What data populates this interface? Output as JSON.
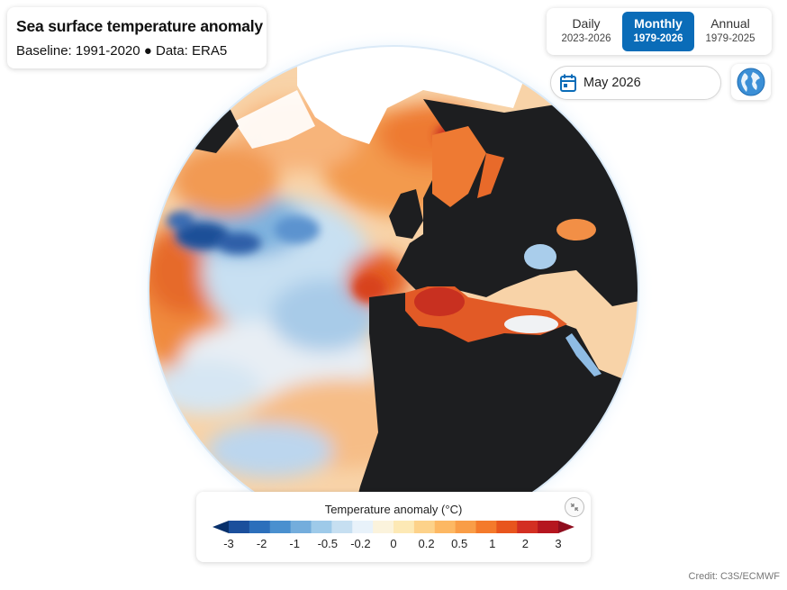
{
  "header": {
    "title": "Sea surface temperature anomaly",
    "subtitle": "Baseline: 1991-2020 ● Data: ERA5"
  },
  "tabs": [
    {
      "label": "Daily",
      "range": "2023-2026",
      "active": false
    },
    {
      "label": "Monthly",
      "range": "1979-2026",
      "active": true
    },
    {
      "label": "Annual",
      "range": "1979-2025",
      "active": false
    }
  ],
  "date_picker": {
    "value": "May 2026",
    "icon": "calendar-icon"
  },
  "view_toggle": {
    "icon": "globe-icon"
  },
  "legend": {
    "title": "Temperature anomaly (°C)",
    "ticks": [
      "-3",
      "-2",
      "-1",
      "-0.5",
      "-0.2",
      "0",
      "0.2",
      "0.5",
      "1",
      "2",
      "3"
    ],
    "colors": [
      "#08306b",
      "#1b4f9c",
      "#2c6fbb",
      "#4a90cf",
      "#74addc",
      "#9ecae9",
      "#c6dff1",
      "#e8f2fa",
      "#fbf3dc",
      "#fde9b5",
      "#fdd28a",
      "#fdb863",
      "#f99d47",
      "#f47a2b",
      "#e8551d",
      "#d32f22",
      "#b5161f",
      "#8f0d1e"
    ],
    "collapse_icon": "collapse-arrows-icon"
  },
  "credit": "Credit: C3S/ECMWF",
  "map": {
    "ocean_palette": {
      "cold_deep": "#1c4f9a",
      "cold": "#6ea6d8",
      "cool": "#c5def1",
      "neutral": "#f6f2ea",
      "warm": "#f9b477",
      "hot": "#ee7530",
      "very_hot": "#cf2d1f"
    },
    "land_color": "#1d1e20",
    "ice_color": "#ffffff"
  }
}
